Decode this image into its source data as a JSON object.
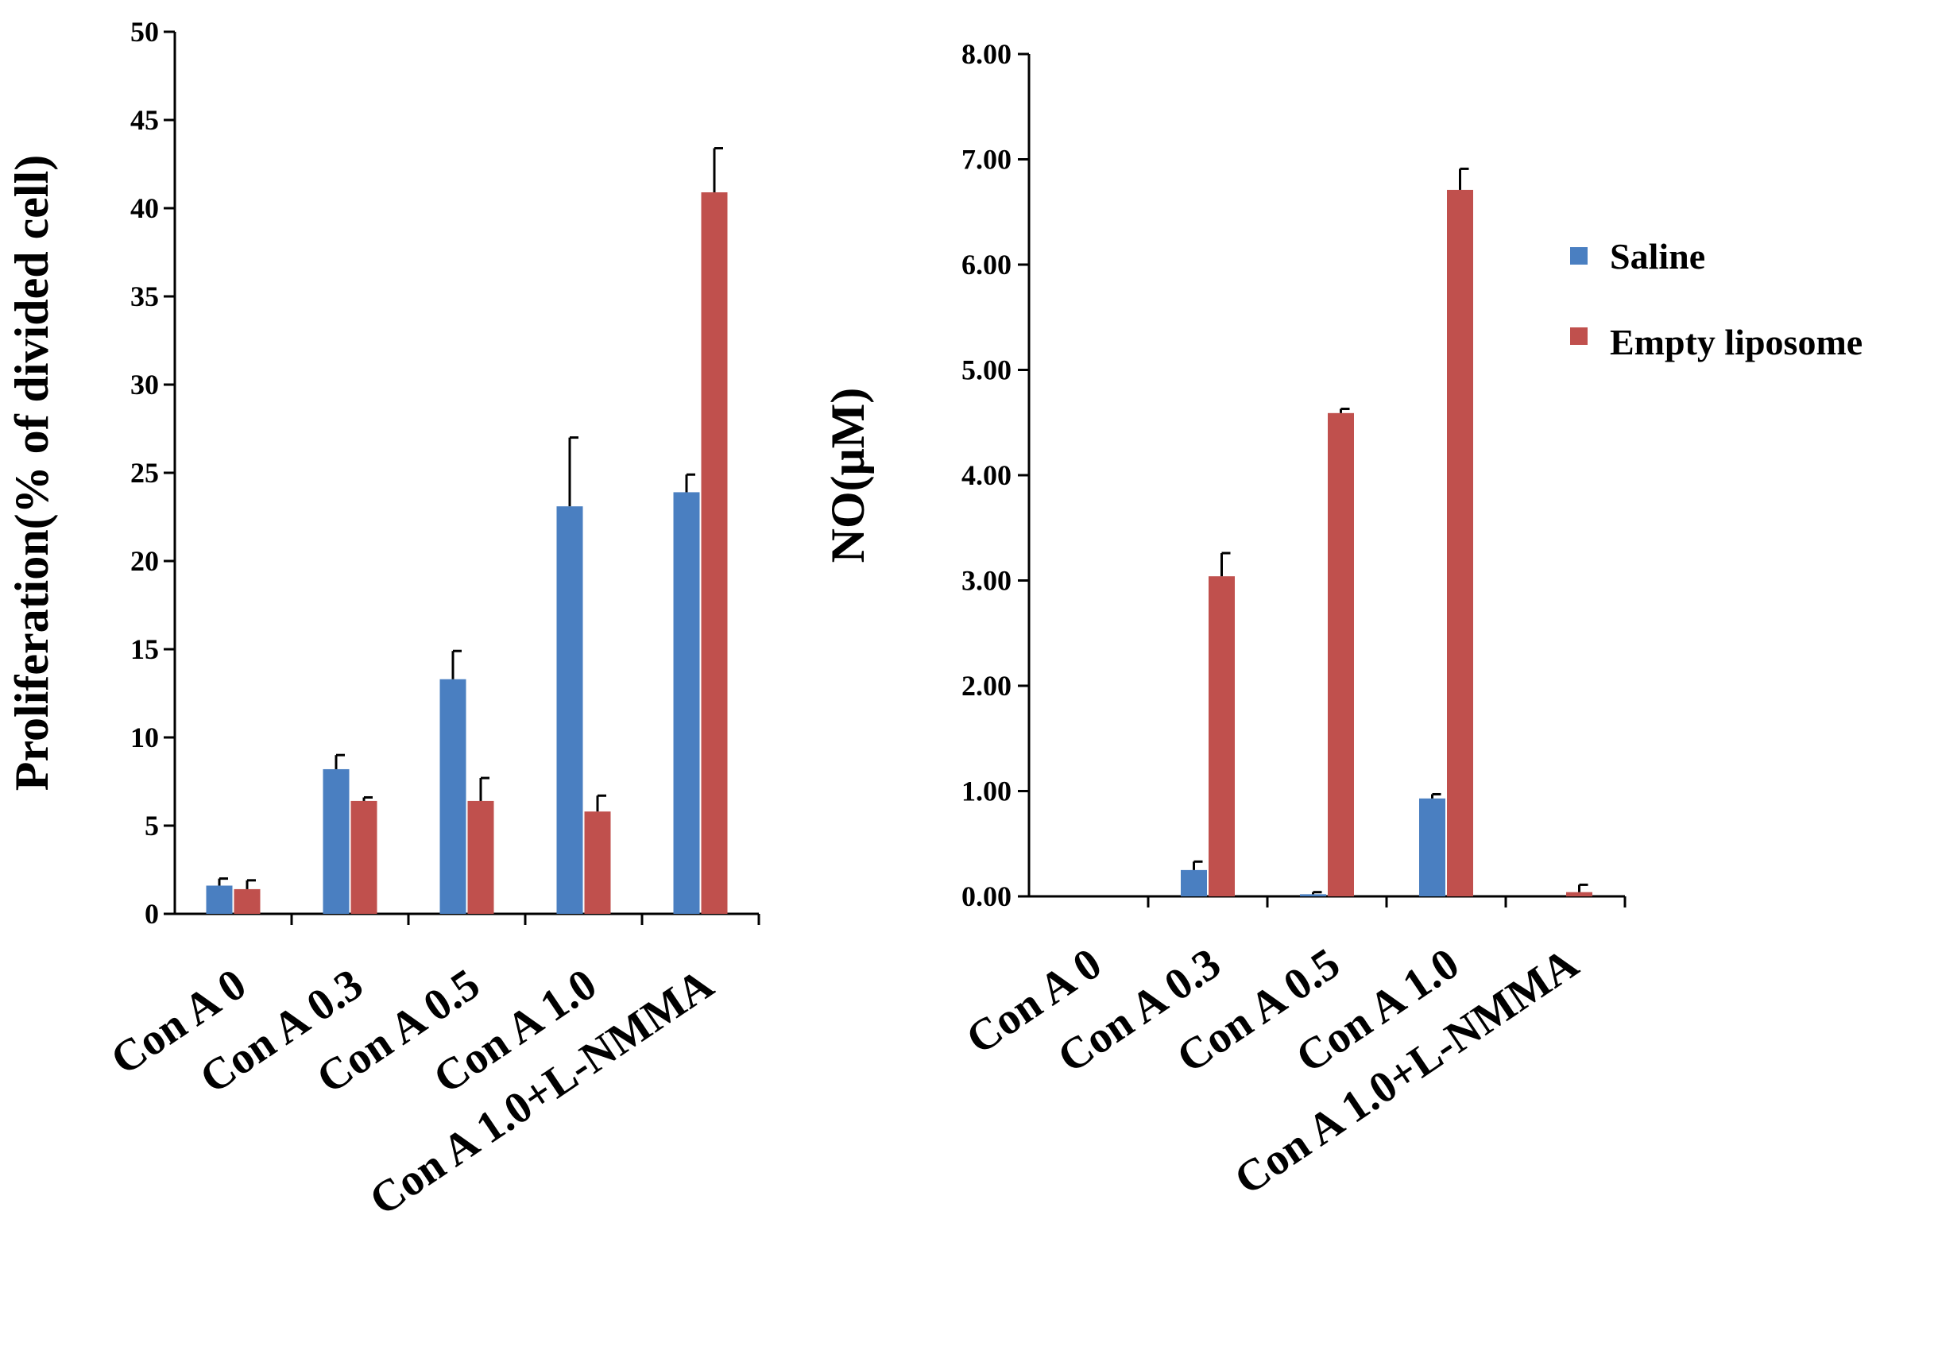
{
  "colors": {
    "saline": "#4a7fc1",
    "empty_liposome": "#c0504d",
    "axis": "#000000"
  },
  "legend": {
    "position": "right of NO chart, upper",
    "entries": [
      "Saline",
      "Empty liposome"
    ]
  },
  "chart_data": [
    {
      "type": "bar",
      "title": "",
      "xlabel": "",
      "ylabel": "Proliferation(% of divided cell)",
      "ylim": [
        0,
        50
      ],
      "yticks": [
        0,
        5,
        10,
        15,
        20,
        25,
        30,
        35,
        40,
        45,
        50
      ],
      "ytick_labels": [
        "0",
        "5",
        "10",
        "15",
        "20",
        "25",
        "30",
        "35",
        "40",
        "45",
        "50"
      ],
      "categories": [
        "Con A 0",
        "Con A 0.3",
        "Con A 0.5",
        "Con A 1.0",
        "Con A 1.0+L-NMMA"
      ],
      "series": [
        {
          "name": "Saline",
          "values": [
            1.6,
            8.2,
            13.3,
            23.1,
            23.9
          ],
          "errors": [
            0.4,
            0.8,
            1.6,
            3.9,
            1.0
          ]
        },
        {
          "name": "Empty liposome",
          "values": [
            1.4,
            6.4,
            6.4,
            5.8,
            40.9
          ],
          "errors": [
            0.5,
            0.2,
            1.3,
            0.9,
            2.5
          ]
        }
      ]
    },
    {
      "type": "bar",
      "title": "",
      "xlabel": "",
      "ylabel": "NO(μM)",
      "ylim": [
        0,
        8
      ],
      "yticks": [
        0,
        1,
        2,
        3,
        4,
        5,
        6,
        7,
        8
      ],
      "ytick_labels": [
        "0.00",
        "1.00",
        "2.00",
        "3.00",
        "4.00",
        "5.00",
        "6.00",
        "7.00",
        "8.00"
      ],
      "categories": [
        "Con A 0",
        "Con A 0.3",
        "Con A 0.5",
        "Con A 1.0",
        "Con A 1.0+L-NMMA"
      ],
      "series": [
        {
          "name": "Saline",
          "values": [
            0.0,
            0.25,
            0.02,
            0.93,
            0.0
          ],
          "errors": [
            0.0,
            0.08,
            0.02,
            0.04,
            0.0
          ]
        },
        {
          "name": "Empty liposome",
          "values": [
            0.0,
            3.04,
            4.59,
            6.71,
            0.04
          ],
          "errors": [
            0.0,
            0.22,
            0.04,
            0.2,
            0.07
          ]
        }
      ]
    }
  ]
}
